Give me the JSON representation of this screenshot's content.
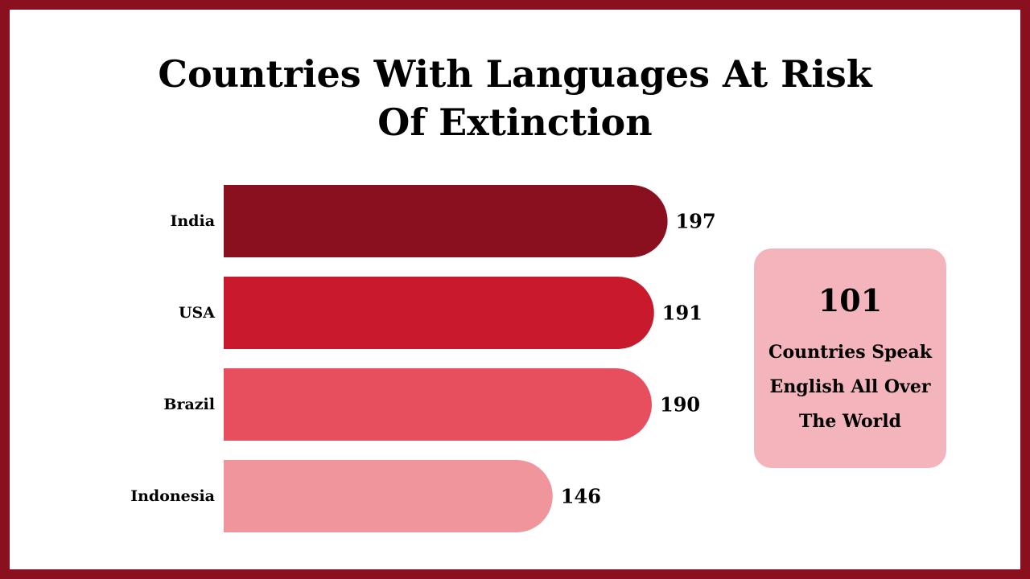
{
  "title": {
    "line1": "Countries With Languages At Risk",
    "line2": "Of Extinction"
  },
  "chart_data": {
    "type": "bar",
    "orientation": "horizontal",
    "categories": [
      "India",
      "USA",
      "Brazil",
      "Indonesia"
    ],
    "values": [
      197,
      191,
      190,
      146
    ],
    "colors": [
      "#8a1020",
      "#c81a2c",
      "#e84f5e",
      "#f0959c"
    ],
    "grid": false,
    "value_labels": true
  },
  "callout": {
    "number": "101",
    "text": "Countries Speak English All Over The World"
  },
  "colors": {
    "frame": "#8a1020",
    "callout_bg": "#f4b4bc"
  }
}
